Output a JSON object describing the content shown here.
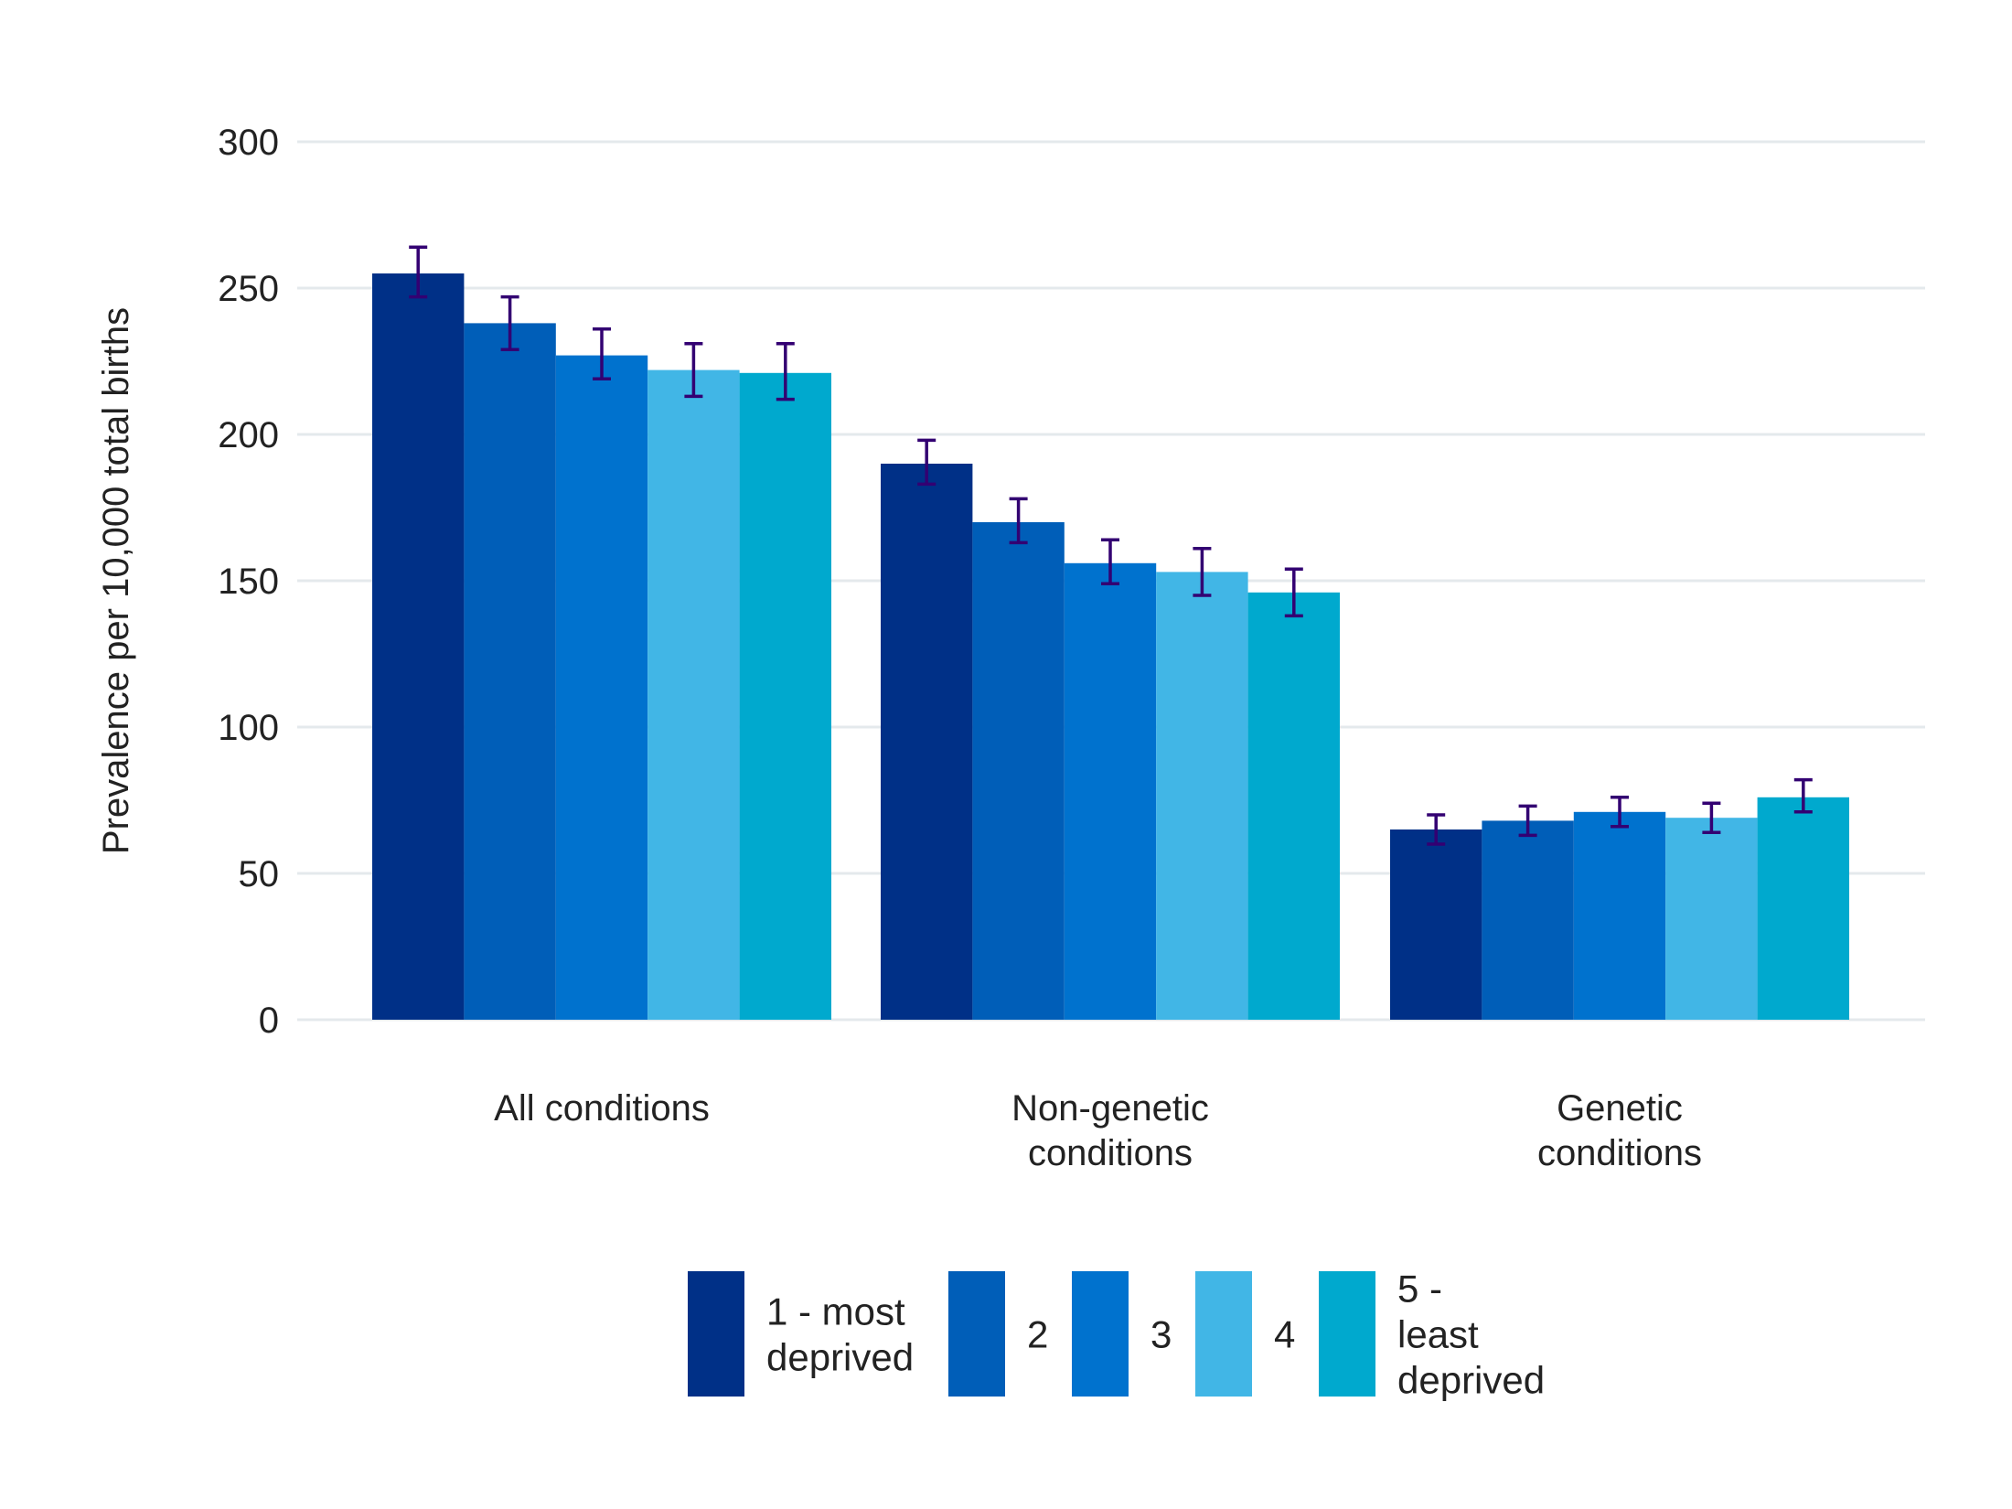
{
  "chart_data": {
    "type": "bar",
    "ylabel": "Prevalence per 10,000 total births",
    "ylim": [
      0,
      300
    ],
    "yticks": [
      0,
      50,
      100,
      150,
      200,
      250,
      300
    ],
    "grid": true,
    "legend_position": "bottom",
    "categories": [
      [
        "All conditions"
      ],
      [
        "Non-genetic",
        "conditions"
      ],
      [
        "Genetic",
        "conditions"
      ]
    ],
    "series": [
      {
        "name": [
          "1 - most",
          "deprived"
        ],
        "color": "#003087",
        "values": [
          255,
          190,
          65
        ],
        "error_low": [
          247,
          183,
          60
        ],
        "error_high": [
          264,
          198,
          70
        ]
      },
      {
        "name": [
          "2"
        ],
        "color": "#005EB8",
        "values": [
          238,
          170,
          68
        ],
        "error_low": [
          229,
          163,
          63
        ],
        "error_high": [
          247,
          178,
          73
        ]
      },
      {
        "name": [
          "3"
        ],
        "color": "#0072CE",
        "values": [
          227,
          156,
          71
        ],
        "error_low": [
          219,
          149,
          66
        ],
        "error_high": [
          236,
          164,
          76
        ]
      },
      {
        "name": [
          "4"
        ],
        "color": "#41B6E6",
        "values": [
          222,
          153,
          69
        ],
        "error_low": [
          213,
          145,
          64
        ],
        "error_high": [
          231,
          161,
          74
        ]
      },
      {
        "name": [
          "5 -",
          "least",
          "deprived"
        ],
        "color": "#00A9CE",
        "values": [
          221,
          146,
          76
        ],
        "error_low": [
          212,
          138,
          71
        ],
        "error_high": [
          231,
          154,
          82
        ]
      }
    ],
    "error_bar_color": "#330072"
  }
}
